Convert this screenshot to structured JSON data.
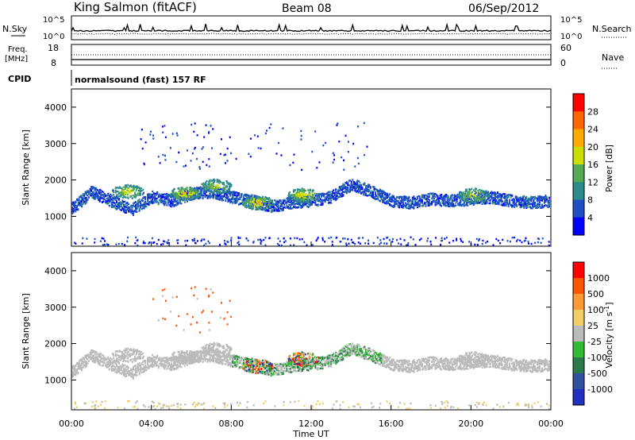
{
  "header": {
    "station": "King Salmon (fitACF)",
    "beam": "Beam 08",
    "date": "06/Sep/2012"
  },
  "top_panels": {
    "nsky_label": "N.Sky",
    "nsky_ticks": [
      "10^5",
      "10^0"
    ],
    "nsearch_label": "N.Search",
    "freq_label_1": "Freq.",
    "freq_label_2": "[MHz]",
    "freq_ticks": [
      "18",
      "8"
    ],
    "nave_label": "Nave",
    "nave_ticks": [
      "60",
      "0"
    ],
    "cpid_label": "CPID",
    "cpid_text": "normalsound (fast) 157 RF"
  },
  "power_colorbar": {
    "label": "Power [dB]",
    "ticks": [
      "28",
      "24",
      "20",
      "16",
      "12",
      "8",
      "4"
    ],
    "colors": [
      "#0000ff",
      "#1f4fc6",
      "#2d8a8a",
      "#55aa55",
      "#ccdd00",
      "#ffaa00",
      "#ff6600",
      "#ff0000"
    ]
  },
  "velocity_colorbar": {
    "label": "Velocity [m s",
    "label_sup": "-1",
    "label_end": "]",
    "ticks": [
      "1000",
      "500",
      "100",
      "25",
      "-25",
      "-100",
      "-500",
      "-1000"
    ],
    "colors": [
      "#2030c0",
      "#3050a0",
      "#2a7a4a",
      "#33bb33",
      "#bbbbbb",
      "#f2cc66",
      "#ff9933",
      "#ff5500",
      "#ff0000"
    ]
  },
  "chart_data": [
    {
      "type": "heatmap",
      "title": "Power",
      "ylabel": "Slant Range [km]",
      "xlim": [
        0,
        24
      ],
      "ylim": [
        180,
        4500
      ],
      "yticks": [
        1000,
        2000,
        3000,
        4000
      ],
      "ytick_labels": [
        "1000",
        "2000",
        "3000",
        "4000"
      ],
      "clim": [
        0,
        32
      ],
      "scatter_band": {
        "range_km": [
          1230,
          1700,
          1440,
          1200,
          1550,
          1450,
          1650,
          1700,
          1550,
          1450,
          1300,
          1400,
          1450,
          1550,
          1900,
          1700,
          1450,
          1400,
          1500,
          1450,
          1500,
          1550,
          1450,
          1400,
          1450
        ],
        "x_hours": [
          0,
          1,
          2,
          3,
          4,
          5,
          6,
          7,
          8,
          9,
          10,
          11,
          12,
          13,
          14,
          15,
          16,
          17,
          18,
          19,
          20,
          21,
          22,
          23,
          24
        ]
      },
      "blobs": [
        {
          "x": 2.8,
          "y": 1700,
          "power": 18
        },
        {
          "x": 5.7,
          "y": 1650,
          "power": 20
        },
        {
          "x": 7.2,
          "y": 1850,
          "power": 17
        },
        {
          "x": 9.3,
          "y": 1400,
          "power": 21
        },
        {
          "x": 11.6,
          "y": 1600,
          "power": 20
        },
        {
          "x": 20.1,
          "y": 1600,
          "power": 18
        }
      ]
    },
    {
      "type": "heatmap",
      "title": "Velocity",
      "xlabel": "Time UT",
      "ylabel": "Slant Range [km]",
      "xlim": [
        0,
        24
      ],
      "ylim": [
        180,
        4500
      ],
      "xticks": [
        0,
        4,
        8,
        12,
        16,
        20,
        24
      ],
      "xtick_labels": [
        "00:00",
        "04:00",
        "08:00",
        "12:00",
        "16:00",
        "20:00",
        "00:00"
      ],
      "yticks": [
        1000,
        2000,
        3000,
        4000
      ],
      "ytick_labels": [
        "1000",
        "2000",
        "3000",
        "4000"
      ]
    }
  ]
}
